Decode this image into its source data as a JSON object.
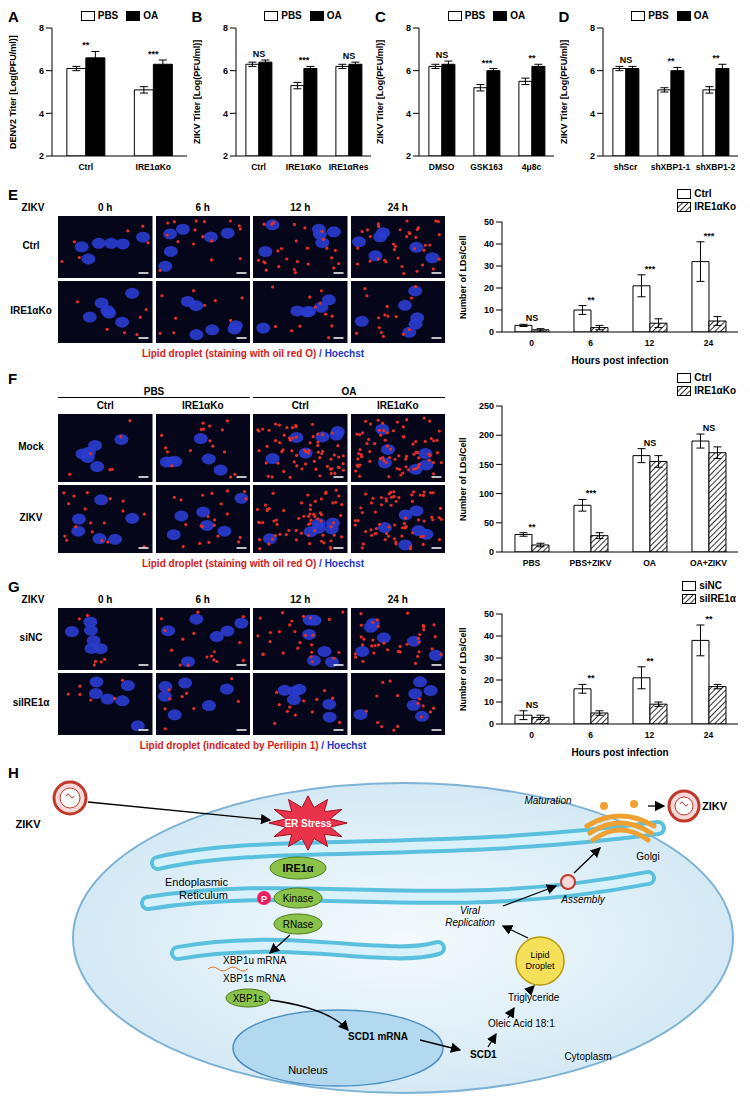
{
  "chart_data": [
    {
      "panel": "A",
      "type": "bar",
      "legend": "top",
      "ylabel": "DENV2 Titer [Log(PFU/ml)]",
      "categories": [
        "Ctrl",
        "IRE1αKo"
      ],
      "ylim": [
        2,
        8
      ],
      "yticks": [
        2,
        4,
        6,
        8
      ],
      "annotations": [
        "**",
        "***"
      ],
      "series": [
        {
          "name": "PBS",
          "color": "#ffffff",
          "values": [
            6.1,
            5.1
          ],
          "errors": [
            0.1,
            0.15
          ]
        },
        {
          "name": "OA",
          "color": "#000000",
          "values": [
            6.6,
            6.3
          ],
          "errors": [
            0.3,
            0.2
          ]
        }
      ]
    },
    {
      "panel": "B",
      "type": "bar",
      "legend": "top",
      "ylabel": "ZIKV Titer [Log(PFU/ml)]",
      "categories": [
        "Ctrl",
        "IRE1αKo",
        "IRE1αRes"
      ],
      "ylim": [
        2,
        8
      ],
      "yticks": [
        2,
        4,
        6,
        8
      ],
      "annotations": [
        "NS",
        "***",
        "NS"
      ],
      "series": [
        {
          "name": "PBS",
          "color": "#ffffff",
          "values": [
            6.3,
            5.3,
            6.2
          ],
          "errors": [
            0.1,
            0.15,
            0.1
          ]
        },
        {
          "name": "OA",
          "color": "#000000",
          "values": [
            6.4,
            6.1,
            6.3
          ],
          "errors": [
            0.1,
            0.1,
            0.1
          ]
        }
      ]
    },
    {
      "panel": "C",
      "type": "bar",
      "legend": "top",
      "ylabel": "ZIKV Titer [Log(PFU/ml)]",
      "categories": [
        "DMSO",
        "GSK163",
        "4μ8c"
      ],
      "ylim": [
        2,
        8
      ],
      "yticks": [
        2,
        4,
        6,
        8
      ],
      "annotations": [
        "NS",
        "***",
        "**"
      ],
      "series": [
        {
          "name": "PBS",
          "color": "#ffffff",
          "values": [
            6.2,
            5.2,
            5.5
          ],
          "errors": [
            0.1,
            0.15,
            0.15
          ]
        },
        {
          "name": "OA",
          "color": "#000000",
          "values": [
            6.3,
            6.0,
            6.2
          ],
          "errors": [
            0.15,
            0.1,
            0.1
          ]
        }
      ]
    },
    {
      "panel": "D",
      "type": "bar",
      "legend": "top",
      "ylabel": "ZIKV Titer [Log(PFU/ml)]",
      "categories": [
        "shScr",
        "shXBP1-1",
        "shXBP1-2"
      ],
      "ylim": [
        2,
        8
      ],
      "yticks": [
        2,
        4,
        6,
        8
      ],
      "annotations": [
        "NS",
        "**",
        "**"
      ],
      "series": [
        {
          "name": "PBS",
          "color": "#ffffff",
          "values": [
            6.1,
            5.1,
            5.1
          ],
          "errors": [
            0.1,
            0.1,
            0.15
          ]
        },
        {
          "name": "OA",
          "color": "#000000",
          "values": [
            6.1,
            6.0,
            6.1
          ],
          "errors": [
            0.1,
            0.15,
            0.2
          ]
        }
      ]
    },
    {
      "panel": "E",
      "type": "bar",
      "legend": "upper right",
      "ylabel": "Number of LDs/Cell",
      "xlabel": "Hours post infection",
      "categories": [
        "0",
        "6",
        "12",
        "24"
      ],
      "ylim": [
        0,
        50
      ],
      "yticks": [
        0,
        10,
        20,
        30,
        40,
        50
      ],
      "annotations": [
        "NS",
        "**",
        "***",
        "***"
      ],
      "series": [
        {
          "name": "Ctrl",
          "color": "#ffffff",
          "values": [
            3,
            10,
            21,
            32
          ],
          "errors": [
            0.5,
            2,
            5,
            9
          ]
        },
        {
          "name": "IRE1αKo",
          "color": "#000000",
          "marker": "hatch",
          "values": [
            1,
            2,
            4,
            5
          ],
          "errors": [
            0.5,
            1,
            2,
            2
          ]
        }
      ]
    },
    {
      "panel": "F",
      "type": "bar",
      "legend": "upper right",
      "ylabel": "Number of LDs/Cell",
      "categories": [
        "PBS",
        "PBS+ZIKV",
        "OA",
        "OA+ZIKV"
      ],
      "ylim": [
        0,
        250
      ],
      "yticks": [
        0,
        50,
        100,
        150,
        200,
        250
      ],
      "annotations": [
        "**",
        "***",
        "NS",
        "NS"
      ],
      "series": [
        {
          "name": "Ctrl",
          "color": "#ffffff",
          "values": [
            30,
            80,
            165,
            190
          ],
          "errors": [
            3,
            10,
            12,
            12
          ]
        },
        {
          "name": "IRE1αKo",
          "color": "#000000",
          "marker": "hatch",
          "values": [
            12,
            28,
            155,
            170
          ],
          "errors": [
            3,
            5,
            10,
            10
          ]
        }
      ]
    },
    {
      "panel": "G",
      "type": "bar",
      "legend": "upper right",
      "ylabel": "Number of LDs/Cell",
      "xlabel": "Hours post infection",
      "categories": [
        "0",
        "6",
        "12",
        "24"
      ],
      "ylim": [
        0,
        50
      ],
      "yticks": [
        0,
        10,
        20,
        30,
        40,
        50
      ],
      "annotations": [
        "NS",
        "**",
        "**",
        "**"
      ],
      "series": [
        {
          "name": "siNC",
          "color": "#ffffff",
          "values": [
            4,
            16,
            21,
            38
          ],
          "errors": [
            2,
            2,
            5,
            7
          ]
        },
        {
          "name": "siIRE1α",
          "color": "#000000",
          "marker": "hatch",
          "values": [
            3,
            5,
            9,
            17
          ],
          "errors": [
            1,
            1,
            1,
            1
          ]
        }
      ]
    }
  ],
  "image_panels": [
    {
      "panel": "E",
      "header_label": "ZIKV",
      "columns": [
        "0 h",
        "6 h",
        "12 h",
        "24 h"
      ],
      "rows": [
        "Ctrl",
        "IRE1αKo"
      ],
      "caption": [
        "Lipid droplet (staining with oil red O)",
        "/ Hoechst"
      ]
    },
    {
      "panel": "F",
      "groups": [
        "PBS",
        "OA"
      ],
      "columns": [
        "Ctrl",
        "IRE1αKo",
        "Ctrl",
        "IRE1αKo"
      ],
      "rows": [
        "Mock",
        "ZIKV"
      ],
      "caption": [
        "Lipid droplet (staining with oil red O)",
        "/ Hoechst"
      ]
    },
    {
      "panel": "G",
      "header_label": "ZIKV",
      "columns": [
        "0 h",
        "6 h",
        "12 h",
        "24 h"
      ],
      "rows": [
        "siNC",
        "siIRE1α"
      ],
      "caption": [
        "Lipid droplet (indicated by Perilipin 1)",
        "/ Hoechst"
      ]
    }
  ],
  "diagram": {
    "panel": "H",
    "virus_in": "ZIKV",
    "er_stress": "ER Stress",
    "er": [
      "Endoplasmic",
      "Reticulum"
    ],
    "ire1": "IRE1α",
    "phospho": "P",
    "kinase": "Kinase",
    "rnase": "RNase",
    "xbp1u": "XBP1u mRNA",
    "xbp1s_mrna": "XBP1s mRNA",
    "xbp1s": "XBP1s",
    "nucleus": "Nucleus",
    "scd1_mrna": "SCD1 mRNA",
    "scd1": "SCD1",
    "oleic": "Oleic Acid 18:1",
    "triglyceride": "Triglyceride",
    "cytoplasm": "Cytoplasm",
    "lipid_droplet": [
      "Lipid",
      "Droplet"
    ],
    "replication": [
      "Viral",
      "Replication"
    ],
    "assembly": "Assembly",
    "maturation": "Maturation",
    "golgi": "Golgi",
    "virus_out": "ZIKV"
  }
}
